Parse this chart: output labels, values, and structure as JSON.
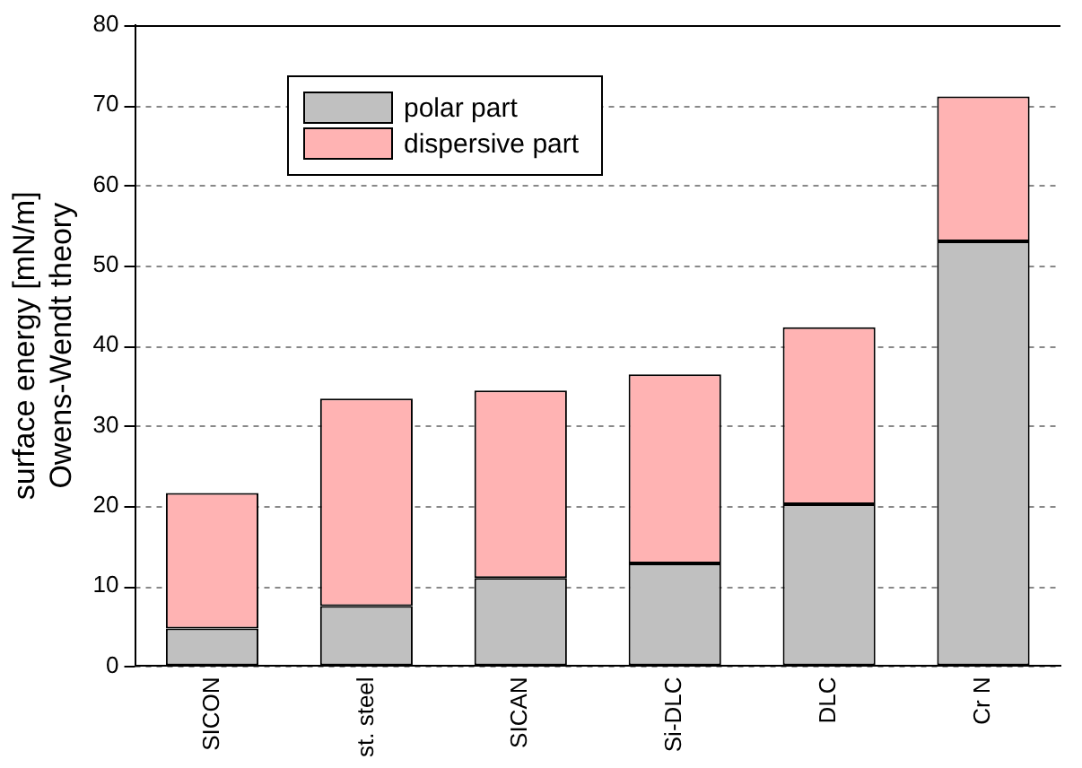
{
  "chart_data": {
    "type": "bar",
    "stacked": true,
    "ylabel": "surface energy [mN/m]\nOwens-Wendt theory",
    "categories": [
      "SICON",
      "st. steel",
      "SICAN",
      "Si-DLC",
      "DLC",
      "Cr N"
    ],
    "series": [
      {
        "name": "polar part",
        "color": "#c0c0c0",
        "values": [
          4.7,
          7.5,
          11.0,
          12.8,
          20.2,
          53.0
        ]
      },
      {
        "name": "dispersive part",
        "color": "#ffb3b3",
        "values": [
          16.9,
          25.9,
          23.4,
          23.6,
          22.1,
          18.1
        ]
      }
    ],
    "ylim": [
      0,
      80
    ],
    "yticks": [
      0,
      10,
      20,
      30,
      40,
      50,
      60,
      70,
      80
    ],
    "grid": "y",
    "legend": "top left"
  }
}
